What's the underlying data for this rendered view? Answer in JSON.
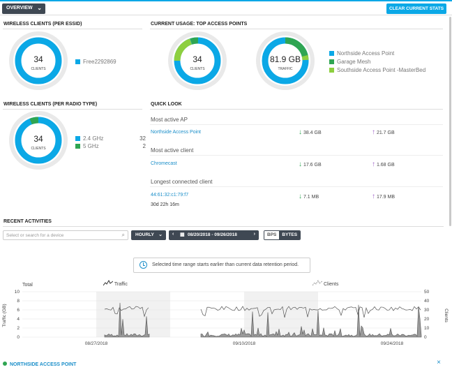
{
  "toolbar": {
    "overview_label": "OVERVIEW",
    "clear_label": "CLEAR CURRENT STATS"
  },
  "colors": {
    "accent": "#0ba8e6",
    "green_dark": "#2fa552",
    "green_light": "#8dcf3f",
    "teal": "#19b08a",
    "purple": "#9c5fc7"
  },
  "wireless_essid": {
    "title": "WIRELESS CLIENTS (PER ESSID)",
    "count": "34",
    "unit": "CLIENTS",
    "legend": [
      {
        "label": "Free2292869",
        "color": "#0ba8e6"
      }
    ]
  },
  "top_ap": {
    "title": "CURRENT USAGE: TOP ACCESS POINTS",
    "clients": {
      "count": "34",
      "unit": "CLIENTS"
    },
    "traffic": {
      "value": "81.9 GB",
      "unit": "TRAFFIC"
    },
    "legend": [
      {
        "label": "Northside Access Point",
        "color": "#0ba8e6"
      },
      {
        "label": "Garage Mesh",
        "color": "#2fa552"
      },
      {
        "label": "Southside Access Point -MasterBed",
        "color": "#8dcf3f"
      }
    ]
  },
  "wireless_radio": {
    "title": "WIRELESS CLIENTS (PER RADIO TYPE)",
    "count": "34",
    "unit": "CLIENTS",
    "legend": [
      {
        "label": "2.4 GHz",
        "value": "32",
        "color": "#0ba8e6"
      },
      {
        "label": "5 GHz",
        "value": "2",
        "color": "#2fa552"
      }
    ]
  },
  "quick_look": {
    "title": "QUICK LOOK",
    "most_active_ap": {
      "label": "Most active AP",
      "name": "Northside Access Point",
      "down": "38.4 GB",
      "up": "21.7 GB"
    },
    "most_active_client": {
      "label": "Most active client",
      "name": "Chromecast",
      "down": "17.6 GB",
      "up": "1.68 GB"
    },
    "longest_client": {
      "label": "Longest connected client",
      "name": "44:61:32:c1:79:f7",
      "duration": "30d 22h 16m",
      "down": "7.1 MB",
      "up": "17.9 MB"
    }
  },
  "recent": {
    "title": "RECENT ACTIVITIES",
    "search_placeholder": "Select or search for a device",
    "interval": "HOURLY",
    "date_range": "08/20/2018 - 09/26/2018",
    "unit_off": "BPS",
    "unit_on": "BYTES",
    "notice": "Selected time range starts earlier than current data retention period."
  },
  "chart_data": {
    "type": "line",
    "title": "Total",
    "series": [
      {
        "name": "Traffic"
      },
      {
        "name": "Clients"
      }
    ],
    "ylabel_left": "Traffic (GB)",
    "ylabel_right": "Clients",
    "yticks_left": [
      "0",
      "2",
      "4",
      "6",
      "8",
      "10"
    ],
    "yticks_right": [
      "0",
      "10",
      "20",
      "30",
      "40",
      "50"
    ],
    "ylim_left": [
      0,
      10
    ],
    "ylim_right": [
      0,
      50
    ],
    "xticks": [
      "08/27/2018",
      "09/10/2018",
      "09/24/2018"
    ],
    "grid": true
  },
  "footer": {
    "ap_name": "NORTHSIDE ACCESS POINT",
    "close_icon": "×"
  }
}
